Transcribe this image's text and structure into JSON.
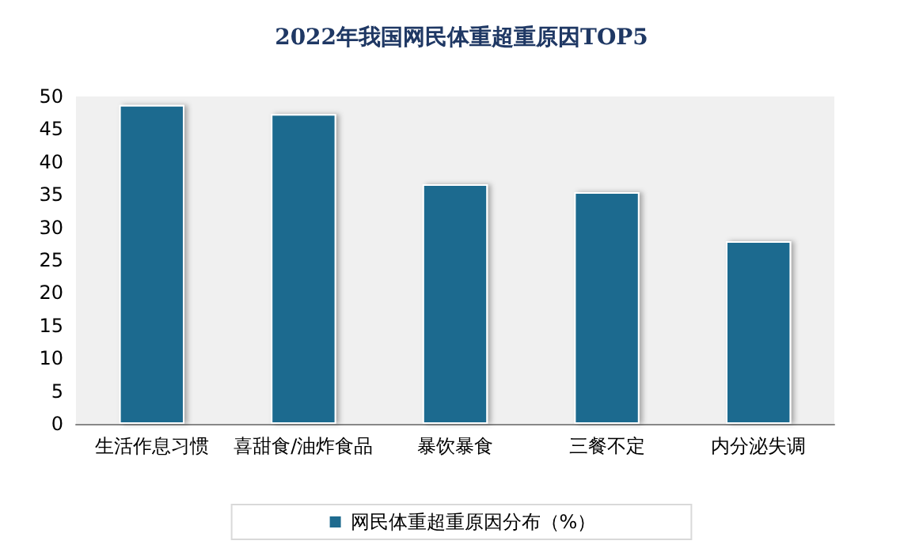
{
  "chart_data": {
    "type": "bar",
    "title": "2022年我国网民体重超重原因TOP5",
    "categories": [
      "生活作息习惯",
      "喜甜食/油炸食品",
      "暴饮暴食",
      "三餐不定",
      "内分泌失调"
    ],
    "series": [
      {
        "name": "网民体重超重原因分布（%）",
        "color": "#1f6b8f",
        "values": [
          48.7,
          47.3,
          36.6,
          35.4,
          27.9
        ]
      }
    ],
    "ylim": [
      0,
      50
    ],
    "yticks": [
      0,
      5,
      10,
      15,
      20,
      25,
      30,
      35,
      40,
      45,
      50
    ],
    "grid": false,
    "legend": "bottom"
  }
}
